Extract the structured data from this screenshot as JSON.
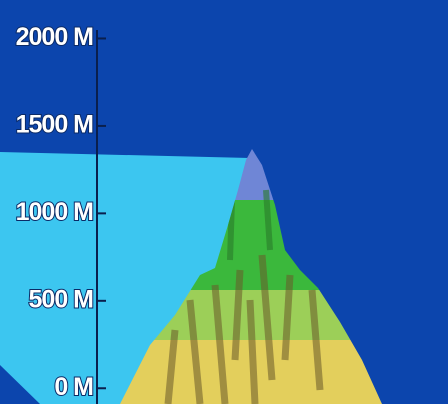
{
  "axis": {
    "ylim": [
      -90,
      2220
    ],
    "ticks": [
      {
        "value": 2000,
        "label": "2000 M"
      },
      {
        "value": 1500,
        "label": "1500 M"
      },
      {
        "value": 1000,
        "label": "1000 M"
      },
      {
        "value": 500,
        "label": "500 M"
      },
      {
        "value": 0,
        "label": "0 M"
      }
    ]
  }
}
